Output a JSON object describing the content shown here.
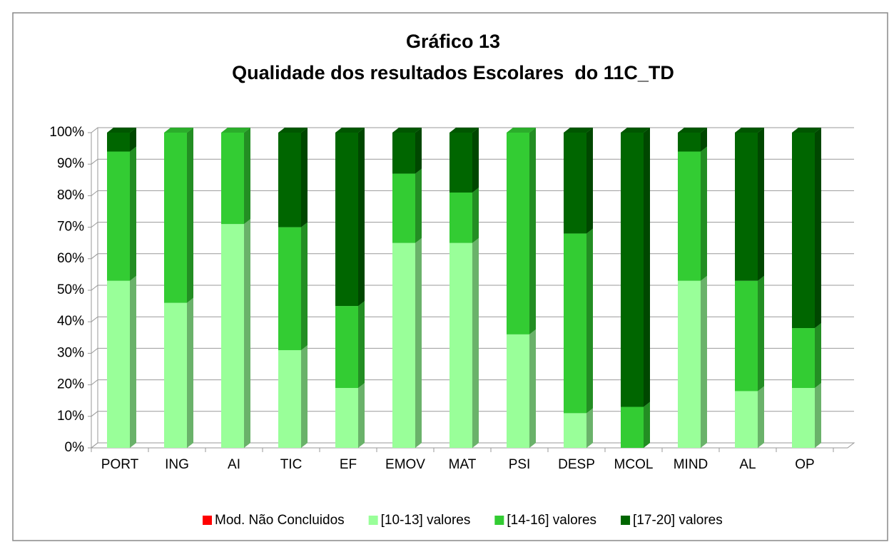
{
  "chart_data": {
    "type": "bar",
    "stacked": true,
    "percent": true,
    "title": [
      "Gráfico 13",
      "Qualidade dos resultados Escolares  do 11C_TD"
    ],
    "categories": [
      "PORT",
      "ING",
      "AI",
      "TIC",
      "EF",
      "EMOV",
      "MAT",
      "PSI",
      "DESP",
      "MCOL",
      "MIND",
      "AL",
      "OP"
    ],
    "series": [
      {
        "name": "Mod. Não Concluidos",
        "color": "#ff0000",
        "values": [
          0,
          0,
          0,
          0,
          0,
          0,
          0,
          0,
          0,
          0,
          0,
          0,
          0
        ]
      },
      {
        "name": "[10-13] valores",
        "color": "#99ff99",
        "values": [
          53,
          46,
          71,
          31,
          19,
          65,
          65,
          36,
          11,
          0,
          53,
          18,
          19
        ]
      },
      {
        "name": "[14-16] valores",
        "color": "#33cc33",
        "values": [
          41,
          54,
          29,
          39,
          26,
          22,
          16,
          64,
          57,
          13,
          41,
          35,
          19
        ]
      },
      {
        "name": "[17-20] valores",
        "color": "#006600",
        "values": [
          6,
          0,
          0,
          30,
          55,
          13,
          19,
          0,
          32,
          87,
          6,
          47,
          62
        ]
      }
    ],
    "ylim": [
      0,
      100
    ],
    "yticks": [
      {
        "value": 0,
        "label": "0%"
      },
      {
        "value": 10,
        "label": "10%"
      },
      {
        "value": 20,
        "label": "20%"
      },
      {
        "value": 30,
        "label": "30%"
      },
      {
        "value": 40,
        "label": "40%"
      },
      {
        "value": 50,
        "label": "50%"
      },
      {
        "value": 60,
        "label": "60%"
      },
      {
        "value": 70,
        "label": "70%"
      },
      {
        "value": 80,
        "label": "80%"
      },
      {
        "value": 90,
        "label": "90%"
      },
      {
        "value": 100,
        "label": "100%"
      }
    ],
    "grid": true,
    "legend": "bottom"
  }
}
